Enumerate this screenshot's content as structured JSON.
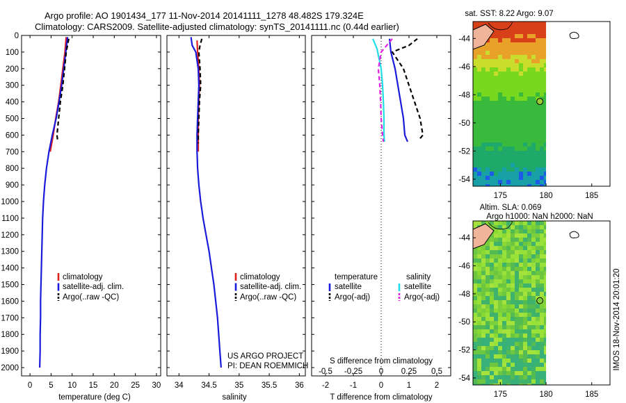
{
  "header": {
    "line1": "Argo profile: AO 1901434_177 11-Nov-2014 20141111_1278 48.482S 179.324E",
    "line2": "Climatology: CARS2009. Satellite-adjusted climatology: synTS_20141111.nc (0.44d earlier)"
  },
  "colors": {
    "climatology": "#e0201c",
    "satellite": "#1a1adc",
    "argo": "#000000",
    "sal_satellite": "#22dde8",
    "sal_argo": "#e020e0",
    "land": "#f0b49a"
  },
  "chart_data": [
    {
      "type": "line",
      "name": "temperature-profile",
      "xlabel": "temperature (deg C)",
      "xlim": [
        -2,
        31
      ],
      "xticks": [
        0,
        5,
        10,
        15,
        20,
        25,
        30
      ],
      "ylim": [
        0,
        2050
      ],
      "yticks": [
        0,
        100,
        200,
        300,
        400,
        500,
        600,
        700,
        800,
        900,
        1000,
        1100,
        1200,
        1300,
        1400,
        1500,
        1600,
        1700,
        1800,
        1900,
        2000
      ],
      "legend": [
        "climatology",
        "satellite-adj. clim.",
        "Argo(..raw -QC)"
      ],
      "legend_position": "lower-right",
      "series": [
        {
          "name": "climatology",
          "color": "red",
          "dash": false,
          "points": [
            [
              8.6,
              10
            ],
            [
              8.3,
              100
            ],
            [
              7.8,
              200
            ],
            [
              7.3,
              300
            ],
            [
              6.8,
              400
            ],
            [
              6.1,
              500
            ],
            [
              5.5,
              600
            ],
            [
              4.8,
              700
            ]
          ]
        },
        {
          "name": "satellite-adj. clim.",
          "color": "blue",
          "dash": false,
          "points": [
            [
              8.9,
              10
            ],
            [
              8.5,
              100
            ],
            [
              8.0,
              200
            ],
            [
              7.5,
              300
            ],
            [
              6.9,
              400
            ],
            [
              6.2,
              500
            ],
            [
              5.3,
              600
            ],
            [
              4.5,
              700
            ],
            [
              3.9,
              800
            ],
            [
              3.5,
              900
            ],
            [
              3.2,
              1000
            ],
            [
              3.0,
              1100
            ],
            [
              2.9,
              1200
            ],
            [
              2.8,
              1300
            ],
            [
              2.7,
              1400
            ],
            [
              2.6,
              1500
            ],
            [
              2.5,
              1600
            ],
            [
              2.5,
              1700
            ],
            [
              2.4,
              1800
            ],
            [
              2.4,
              1900
            ],
            [
              2.3,
              2000
            ]
          ]
        },
        {
          "name": "Argo(..raw -QC)",
          "color": "black",
          "dash": true,
          "points": [
            [
              9.2,
              20
            ],
            [
              8.6,
              100
            ],
            [
              8.2,
              200
            ],
            [
              7.8,
              300
            ],
            [
              7.2,
              400
            ],
            [
              6.8,
              500
            ],
            [
              6.4,
              600
            ],
            [
              6.6,
              640
            ]
          ]
        }
      ]
    },
    {
      "type": "line",
      "name": "salinity-profile",
      "xlabel": "salinity",
      "xlim": [
        33.8,
        36.1
      ],
      "xticks": [
        34,
        34.5,
        35,
        35.5,
        36
      ],
      "ylim": [
        0,
        2050
      ],
      "legend": [
        "climatology",
        "satellite-adj. clim.",
        "Argo(..raw -QC)"
      ],
      "legend_position": "lower-right",
      "annotation": [
        "US ARGO PROJECT",
        "PI: DEAN ROEMMICH"
      ],
      "series": [
        {
          "name": "climatology",
          "color": "red",
          "dash": false,
          "points": [
            [
              34.3,
              30
            ],
            [
              34.31,
              100
            ],
            [
              34.33,
              200
            ],
            [
              34.34,
              300
            ],
            [
              34.33,
              400
            ],
            [
              34.32,
              500
            ],
            [
              34.32,
              600
            ],
            [
              34.32,
              700
            ]
          ]
        },
        {
          "name": "satellite-adj. clim.",
          "color": "blue",
          "dash": false,
          "points": [
            [
              34.2,
              10
            ],
            [
              34.22,
              60
            ],
            [
              34.28,
              100
            ],
            [
              34.32,
              200
            ],
            [
              34.33,
              300
            ],
            [
              34.32,
              400
            ],
            [
              34.31,
              500
            ],
            [
              34.3,
              600
            ],
            [
              34.3,
              700
            ],
            [
              34.31,
              800
            ],
            [
              34.33,
              900
            ],
            [
              34.36,
              1000
            ],
            [
              34.4,
              1100
            ],
            [
              34.45,
              1200
            ],
            [
              34.5,
              1300
            ],
            [
              34.54,
              1400
            ],
            [
              34.58,
              1500
            ],
            [
              34.61,
              1600
            ],
            [
              34.64,
              1700
            ],
            [
              34.66,
              1800
            ],
            [
              34.68,
              1900
            ],
            [
              34.7,
              2000
            ]
          ]
        },
        {
          "name": "Argo(..raw -QC)",
          "color": "black",
          "dash": true,
          "points": [
            [
              34.38,
              20
            ],
            [
              34.35,
              60
            ],
            [
              34.33,
              100
            ],
            [
              34.35,
              200
            ],
            [
              34.36,
              300
            ],
            [
              34.34,
              400
            ],
            [
              34.33,
              500
            ],
            [
              34.32,
              600
            ],
            [
              34.32,
              650
            ]
          ]
        }
      ]
    },
    {
      "type": "line",
      "name": "difference-profile",
      "xlabel": "T difference from climatology",
      "xlim": [
        -2.5,
        2.5
      ],
      "xticks": [
        -2,
        -1,
        0,
        1,
        2
      ],
      "top_axis_label": "S difference from climatology",
      "top_ticks": [
        "-0.5",
        "-0.25",
        "0",
        "0.25",
        "0.5"
      ],
      "top_tick_values": [
        -2,
        -1,
        0,
        1,
        2
      ],
      "ylim": [
        0,
        2050
      ],
      "legend": {
        "temperature_title": "temperature",
        "salinity_title": "salinity",
        "entries": [
          "satellite",
          "Argo(-adj)",
          "satellite",
          "Argo(-adj)"
        ]
      },
      "series": [
        {
          "name": "temperature satellite",
          "color": "blue",
          "dash": false,
          "points": [
            [
              0.3,
              20
            ],
            [
              0.35,
              100
            ],
            [
              0.5,
              200
            ],
            [
              0.6,
              300
            ],
            [
              0.7,
              400
            ],
            [
              0.8,
              500
            ],
            [
              0.85,
              600
            ],
            [
              0.95,
              640
            ]
          ]
        },
        {
          "name": "temperature Argo(-adj)",
          "color": "black",
          "dash": true,
          "points": [
            [
              1.3,
              20
            ],
            [
              1.0,
              60
            ],
            [
              0.4,
              100
            ],
            [
              0.8,
              200
            ],
            [
              1.0,
              300
            ],
            [
              1.2,
              400
            ],
            [
              1.4,
              500
            ],
            [
              1.5,
              600
            ],
            [
              1.4,
              620
            ]
          ]
        },
        {
          "name": "salinity satellite",
          "color": "cyan",
          "dash": false,
          "points": [
            [
              -0.3,
              20
            ],
            [
              -0.15,
              80
            ],
            [
              0.0,
              200
            ],
            [
              0.05,
              300
            ],
            [
              0.08,
              400
            ],
            [
              0.1,
              500
            ],
            [
              0.1,
              600
            ],
            [
              0.12,
              640
            ]
          ]
        },
        {
          "name": "salinity Argo(-adj)",
          "color": "magenta",
          "dash": true,
          "points": [
            [
              0.4,
              20
            ],
            [
              0.0,
              100
            ],
            [
              -0.1,
              200
            ],
            [
              -0.05,
              300
            ],
            [
              -0.02,
              400
            ],
            [
              0.0,
              500
            ],
            [
              0.05,
              600
            ],
            [
              0.08,
              640
            ]
          ]
        }
      ]
    },
    {
      "type": "heatmap",
      "name": "sst-map",
      "title": "sat. SST: 8.22  Argo: 9.07",
      "xlim": [
        172,
        187
      ],
      "ylim": [
        -54.5,
        -42.8
      ],
      "xticks": [
        175,
        180,
        185
      ],
      "yticks": [
        -44,
        -46,
        -48,
        -50,
        -52,
        -54
      ],
      "marker": {
        "lon": 179.324,
        "lat": -48.482
      }
    },
    {
      "type": "heatmap",
      "name": "sla-map",
      "title_line1": "Altim. SLA: 0.069",
      "title_line2": "Argo h1000: NaN h2000: NaN",
      "xlim": [
        172,
        187
      ],
      "ylim": [
        -54.5,
        -42.8
      ],
      "xticks": [
        175,
        180,
        185
      ],
      "yticks": [
        -44,
        -46,
        -48,
        -50,
        -52,
        -54
      ],
      "marker": {
        "lon": 179.324,
        "lat": -48.482
      }
    }
  ],
  "timestamp": "IMOS 18-Nov-2014 20:01:20"
}
